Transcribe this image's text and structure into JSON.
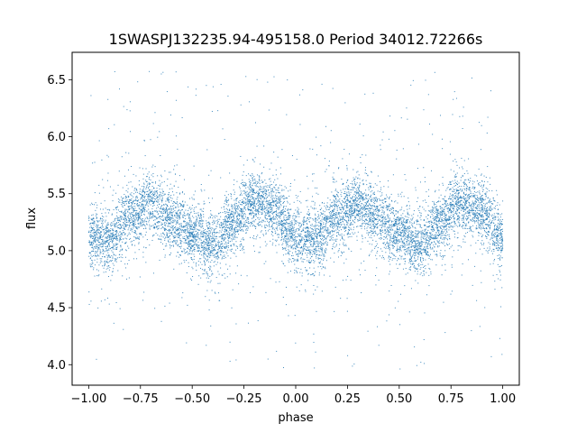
{
  "chart_data": {
    "type": "scatter",
    "title": "1SWASPJ132235.94-495158.0 Period 34012.72266s",
    "xlabel": "phase",
    "ylabel": "flux",
    "xlim": [
      -1.08,
      1.08
    ],
    "ylim": [
      3.82,
      6.74
    ],
    "x_ticks": [
      -1.0,
      -0.75,
      -0.5,
      -0.25,
      0.0,
      0.25,
      0.5,
      0.75,
      1.0
    ],
    "x_tick_labels": [
      "−1.00",
      "−0.75",
      "−0.50",
      "−0.25",
      "0.00",
      "0.25",
      "0.50",
      "0.75",
      "1.00"
    ],
    "y_ticks": [
      4.0,
      4.5,
      5.0,
      5.5,
      6.0,
      6.5
    ],
    "y_tick_labels": [
      "4.0",
      "4.5",
      "5.0",
      "5.5",
      "6.0",
      "6.5"
    ],
    "grid": false,
    "point_color": "#1f77b4",
    "series": [
      {
        "model": "double-humped folded light curve",
        "x_range": [
          -1.0,
          1.0
        ],
        "profile_phase": [
          0.0,
          0.1,
          0.2,
          0.3,
          0.4,
          0.5,
          0.6,
          0.7,
          0.8,
          0.9
        ],
        "profile_flux": [
          5.1,
          5.1,
          5.3,
          5.42,
          5.28,
          5.15,
          5.05,
          5.25,
          5.45,
          5.35
        ],
        "core_scatter": 0.13,
        "outlier_range": [
          3.95,
          6.62
        ],
        "n_points": 9000
      }
    ]
  }
}
